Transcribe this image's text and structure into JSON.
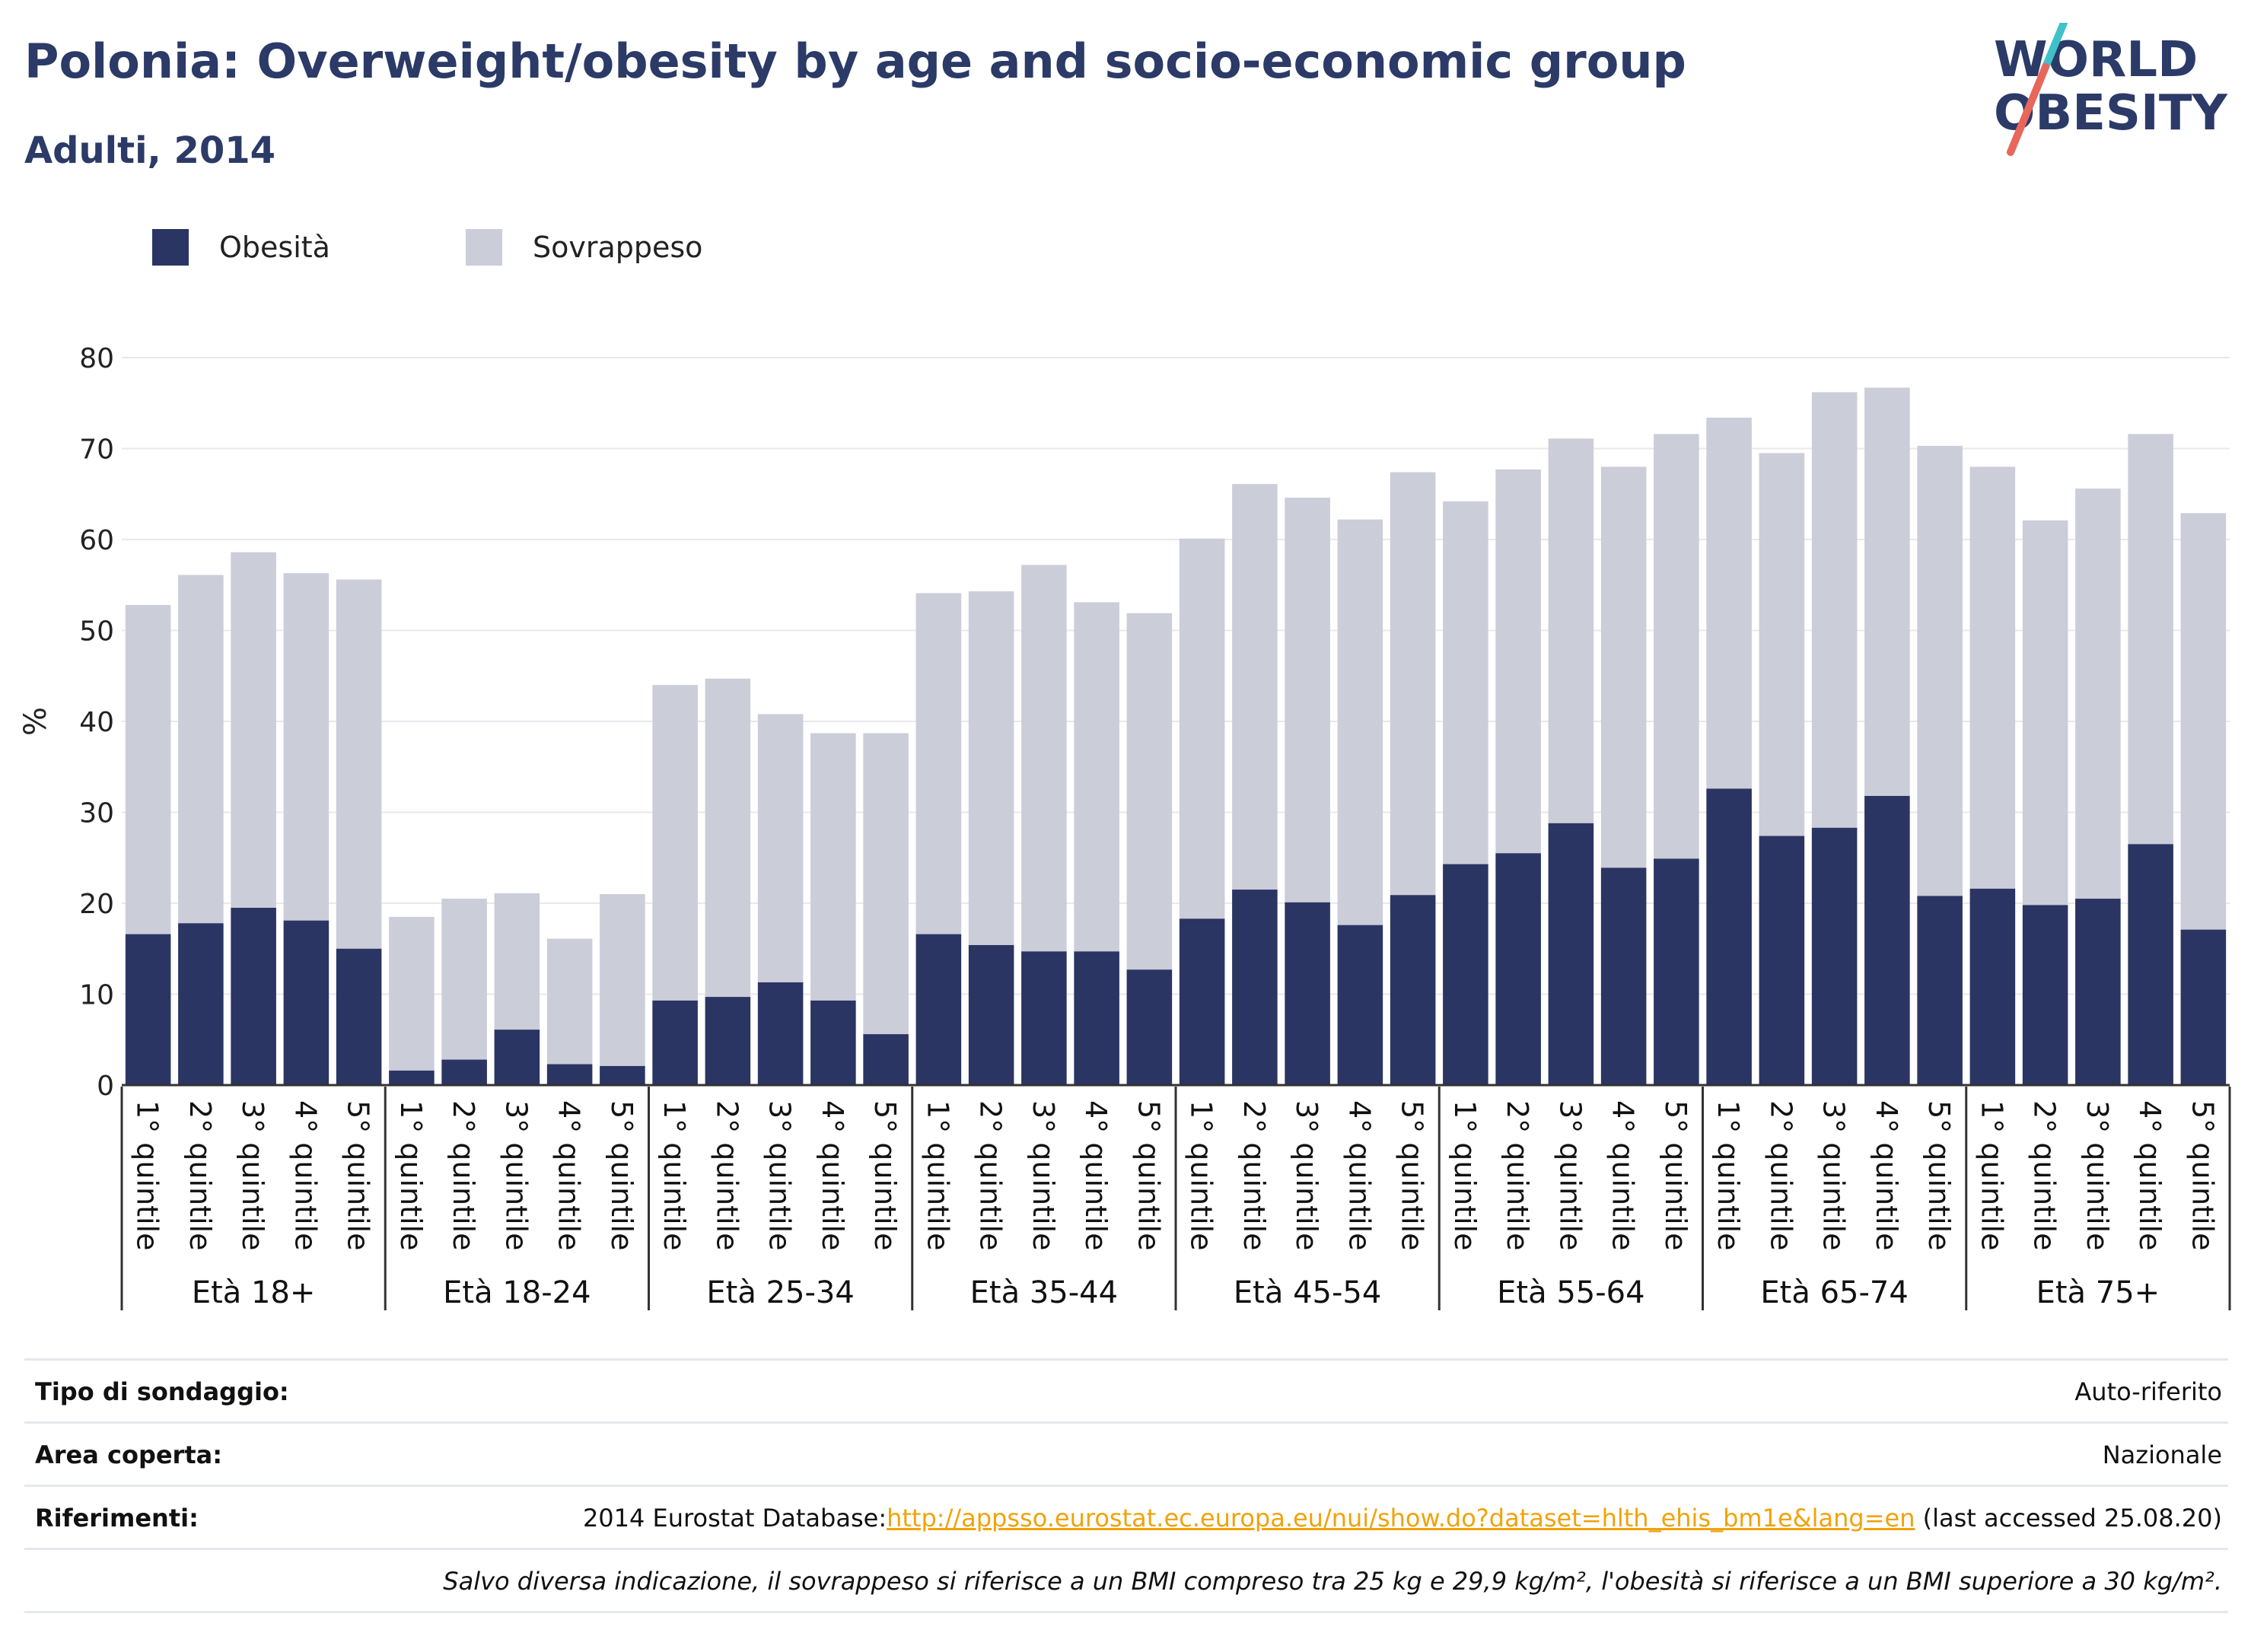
{
  "header": {
    "title": "Polonia: Overweight/obesity by age and socio-economic group",
    "subtitle": "Adulti, 2014"
  },
  "logo": {
    "line1": "WORLD",
    "line2": "OBESITY"
  },
  "colors": {
    "obesity": "#2b3563",
    "overweight": "#cbcdd9",
    "title": "#2b3a67",
    "link": "#f0a30a",
    "logo_teal": "#3fc1c9",
    "logo_coral": "#e8675b"
  },
  "legend": [
    {
      "label": "Obesità",
      "color": "#2b3563"
    },
    {
      "label": "Sovrappeso",
      "color": "#cbcdd9"
    }
  ],
  "chart_data": {
    "type": "bar",
    "stacked": true,
    "ylabel": "%",
    "ylim": [
      0,
      80
    ],
    "yticks": [
      0,
      10,
      20,
      30,
      40,
      50,
      60,
      70,
      80
    ],
    "grid": true,
    "groups": [
      "Età 18+",
      "Età 18-24",
      "Età 25-34",
      "Età 35-44",
      "Età 45-54",
      "Età 55-64",
      "Età 65-74",
      "Età 75+"
    ],
    "categories": [
      "1° quintile",
      "2° quintile",
      "3° quintile",
      "4° quintile",
      "5° quintile"
    ],
    "series": [
      {
        "name": "Obesità",
        "values": [
          [
            16.6,
            17.8,
            19.5,
            18.1,
            15.0
          ],
          [
            1.6,
            2.8,
            6.1,
            2.3,
            2.1
          ],
          [
            9.3,
            9.7,
            11.3,
            9.3,
            5.6
          ],
          [
            16.6,
            15.4,
            14.7,
            14.7,
            12.7
          ],
          [
            18.3,
            21.5,
            20.1,
            17.6,
            20.9
          ],
          [
            24.3,
            25.5,
            28.8,
            23.9,
            24.9
          ],
          [
            32.6,
            27.4,
            28.3,
            31.8,
            20.8
          ],
          [
            21.6,
            19.8,
            20.5,
            26.5,
            17.1
          ]
        ]
      },
      {
        "name": "Sovrappeso",
        "values": [
          [
            36.2,
            38.3,
            39.1,
            38.2,
            40.6
          ],
          [
            16.9,
            17.7,
            15.0,
            13.8,
            18.9
          ],
          [
            34.7,
            35.0,
            29.5,
            29.4,
            33.1
          ],
          [
            37.5,
            38.9,
            42.5,
            38.4,
            39.2
          ],
          [
            41.8,
            44.6,
            44.5,
            44.6,
            46.5
          ],
          [
            39.9,
            42.2,
            42.3,
            44.1,
            46.7
          ],
          [
            40.8,
            42.1,
            47.9,
            44.9,
            49.5
          ],
          [
            46.4,
            42.3,
            45.1,
            45.1,
            45.8
          ]
        ]
      }
    ]
  },
  "info": {
    "survey_label": "Tipo di sondaggio:",
    "survey_value": "Auto-riferito",
    "area_label": "Area coperta:",
    "area_value": "Nazionale",
    "refs_label": "Riferimenti:",
    "refs_prefix": "2014 Eurostat Database:",
    "refs_link": "http://appsso.eurostat.ec.europa.eu/nui/show.do?dataset=hlth_ehis_bm1e&lang=en",
    "refs_suffix": " (last accessed 25.08.20)",
    "note": "Salvo diversa indicazione, il sovrappeso si riferisce a un BMI compreso tra 25 kg e 29,9 kg/m², l'obesità si riferisce a un BMI superiore a 30 kg/m²."
  }
}
